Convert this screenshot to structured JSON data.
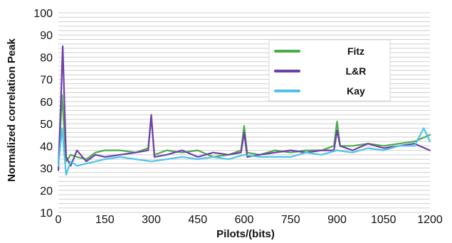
{
  "chart_data": {
    "type": "line",
    "title": "",
    "xlabel": "Pilots/(bits)",
    "ylabel": "Normalized correlation Peak",
    "xlim": [
      0,
      1200
    ],
    "ylim": [
      10,
      100
    ],
    "x_ticks": [
      0,
      150,
      300,
      450,
      600,
      750,
      900,
      1050,
      1200
    ],
    "x_tick_labels": [
      "0",
      "150",
      "300",
      "450",
      "600",
      "750",
      "900",
      "1050",
      "1200"
    ],
    "y_ticks": [
      10,
      20,
      30,
      40,
      50,
      60,
      70,
      80,
      90,
      100
    ],
    "y_tick_labels": [
      "10",
      "20",
      "30",
      "40",
      "50",
      "60",
      "70",
      "80",
      "90",
      "100"
    ],
    "grid": true,
    "legend_position": "top-right",
    "series": [
      {
        "name": "Fitz",
        "color": "#4aab4a",
        "x": [
          0,
          12,
          25,
          40,
          60,
          90,
          120,
          150,
          200,
          250,
          290,
          300,
          310,
          350,
          400,
          450,
          500,
          550,
          590,
          600,
          610,
          650,
          700,
          750,
          800,
          850,
          890,
          900,
          910,
          950,
          1000,
          1050,
          1100,
          1150,
          1200
        ],
        "y": [
          31,
          63,
          33,
          36,
          35,
          34,
          37,
          38,
          38,
          37,
          39,
          53,
          36,
          38,
          37,
          38,
          35,
          36,
          38,
          49,
          37,
          36,
          38,
          37,
          38,
          38,
          40,
          51,
          40,
          40,
          41,
          40,
          41,
          42,
          45
        ]
      },
      {
        "name": "L&R",
        "color": "#6e3fa9",
        "x": [
          0,
          8,
          14,
          25,
          40,
          60,
          90,
          120,
          150,
          200,
          250,
          290,
          300,
          310,
          350,
          400,
          450,
          500,
          550,
          590,
          600,
          610,
          650,
          700,
          750,
          800,
          850,
          890,
          900,
          910,
          950,
          1000,
          1050,
          1100,
          1150,
          1200
        ],
        "y": [
          29,
          60,
          85,
          35,
          31,
          38,
          33,
          36,
          35,
          36,
          37,
          38,
          54,
          35,
          36,
          38,
          35,
          37,
          36,
          37,
          46,
          35,
          36,
          37,
          38,
          37,
          38,
          38,
          47,
          40,
          38,
          41,
          39,
          40,
          41,
          38
        ]
      },
      {
        "name": "Kay",
        "color": "#4fc3e8",
        "x": [
          0,
          12,
          25,
          40,
          60,
          90,
          120,
          150,
          200,
          250,
          300,
          350,
          400,
          450,
          500,
          550,
          600,
          650,
          700,
          750,
          800,
          850,
          900,
          950,
          1000,
          1050,
          1100,
          1150,
          1180,
          1200
        ],
        "y": [
          31,
          48,
          27,
          33,
          31,
          32,
          33,
          34,
          35,
          34,
          33,
          34,
          35,
          34,
          35,
          34,
          36,
          35,
          35,
          35,
          37,
          36,
          38,
          37,
          39,
          38,
          40,
          40,
          48,
          42
        ]
      }
    ]
  }
}
